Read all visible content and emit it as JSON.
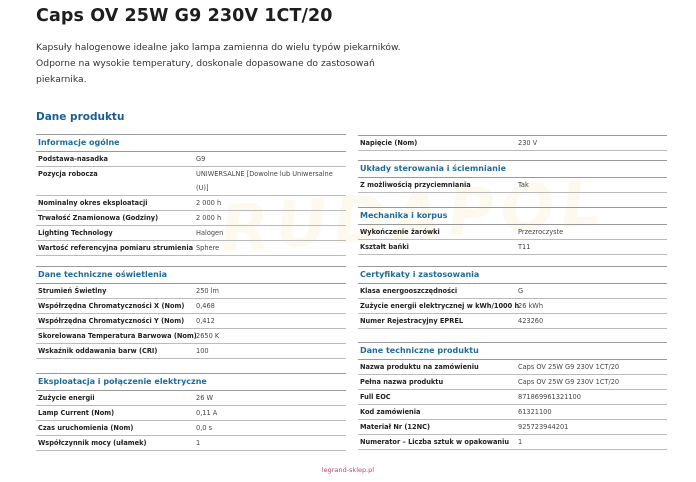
{
  "title": "Caps OV 25W G9 230V 1CT/20",
  "description": "Kapsuły halogenowe idealne jako lampa zamienna do wielu typów piekarników. Odporne na wysokie temperatury, doskonale dopasowane do zastosowań piekarnika.",
  "section_heading": "Dane produktu",
  "watermark": "RUDAPOL",
  "colors": {
    "heading": "#1a5e8f",
    "table_header": "#1f6b9a",
    "footer": "#c0446a"
  },
  "left_blocks": [
    {
      "header": "Informacje ogólne",
      "rows": [
        {
          "label": "Podstawa-nasadka",
          "value": "G9"
        },
        {
          "label": "Pozycja robocza",
          "value": "UNIWERSALNE [Dowolne lub Uniwersalne (U)]"
        },
        {
          "label": "Nominalny okres eksploatacji",
          "value": "2 000 h"
        },
        {
          "label": "Trwałość Znamionowa (Godziny)",
          "value": "2 000 h"
        },
        {
          "label": "Lighting Technology",
          "value": "Halogen"
        },
        {
          "label": "Wartość referencyjna pomiaru strumienia",
          "value": "Sphere"
        }
      ]
    },
    {
      "header": "Dane techniczne oświetlenia",
      "rows": [
        {
          "label": "Strumień Świetlny",
          "value": "250 lm"
        },
        {
          "label": "Współrzędna Chromatyczności X (Nom)",
          "value": "0,468"
        },
        {
          "label": "Współrzędna Chromatyczności Y (Nom)",
          "value": "0,412"
        },
        {
          "label": "Skorelowana Temperatura Barwowa (Nom)",
          "value": "2650 K"
        },
        {
          "label": "Wskaźnik oddawania barw (CRI)",
          "value": "100"
        }
      ]
    },
    {
      "header": "Eksploatacja i połączenie elektryczne",
      "rows": [
        {
          "label": "Zużycie energii",
          "value": "26 W"
        },
        {
          "label": "Lamp Current (Nom)",
          "value": "0,11 A"
        },
        {
          "label": "Czas uruchomienia (Nom)",
          "value": "0,0 s"
        },
        {
          "label": "Współczynnik mocy (ułamek)",
          "value": "1"
        }
      ]
    }
  ],
  "right_blocks": [
    {
      "header": "",
      "rows": [
        {
          "label": "Napięcie (Nom)",
          "value": "230 V"
        }
      ]
    },
    {
      "header": "Układy sterowania i ściemnianie",
      "rows": [
        {
          "label": "Z możliwością przyciemniania",
          "value": "Tak"
        }
      ]
    },
    {
      "header": "Mechanika i korpus",
      "rows": [
        {
          "label": "Wykończenie żarówki",
          "value": "Przezroczyste"
        },
        {
          "label": "Kształt bańki",
          "value": "T11"
        }
      ]
    },
    {
      "header": "Certyfikaty i zastosowania",
      "rows": [
        {
          "label": "Klasa energooszczędności",
          "value": "G"
        },
        {
          "label": "Zużycie energii elektrycznej w kWh/1000 h",
          "value": "26 kWh"
        },
        {
          "label": "Numer Rejestracyjny EPREL",
          "value": "423260"
        }
      ]
    },
    {
      "header": "Dane techniczne produktu",
      "rows": [
        {
          "label": "Nazwa produktu na zamówieniu",
          "value": "Caps OV 25W G9 230V 1CT/20"
        },
        {
          "label": "Pełna nazwa produktu",
          "value": "Caps OV 25W G9 230V 1CT/20"
        },
        {
          "label": "Full EOC",
          "value": "871869961321100"
        },
        {
          "label": "Kod zamówienia",
          "value": "61321100"
        },
        {
          "label": "Materiał Nr (12NC)",
          "value": "925723944201"
        },
        {
          "label": "Numerator – Liczba sztuk w opakowaniu",
          "value": "1"
        }
      ]
    }
  ],
  "footer": "legrand-sklep.pl"
}
